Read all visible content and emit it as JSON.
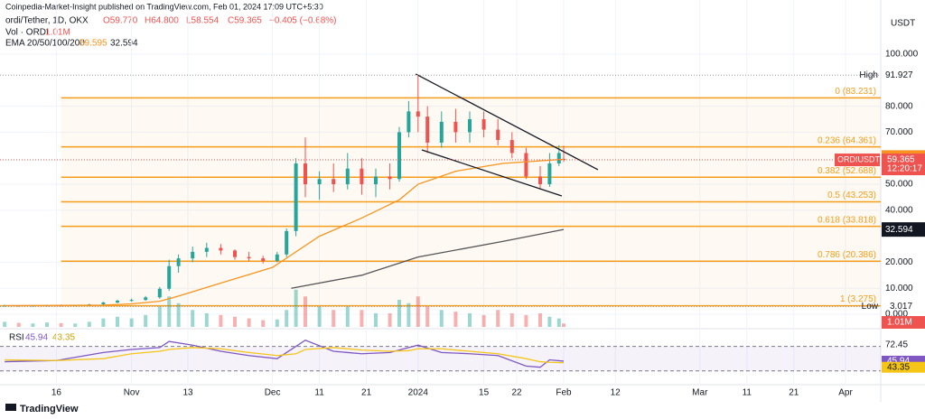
{
  "header": {
    "title": "Coinpedia-Market-Insight published on TradingView.com, Feb 01, 2024 17:09 UTC+5:30",
    "symbol": "ordi/Tether, 1D, OKX",
    "open": "O59.770",
    "high": "H64.800",
    "low": "L58.554",
    "close": "C59.365",
    "change": "−0.405 (−0.68%)",
    "vol": "Vol · ORDI",
    "vol_value": "1.01M",
    "ema": "EMA 20/50/100/200",
    "currency": "USDT",
    "footer": "TradingView"
  },
  "chart_data": {
    "type": "candlestick",
    "x": [
      4,
      7,
      10,
      13,
      16,
      19,
      22,
      25,
      28,
      31,
      34,
      37,
      39,
      41,
      44,
      47,
      50,
      53,
      56,
      59,
      62,
      64,
      66,
      68,
      71,
      74,
      77,
      80,
      83,
      86,
      88,
      90,
      92,
      94,
      97,
      100,
      103,
      106,
      109,
      112,
      115,
      118,
      120,
      122,
      123
    ],
    "open": [
      3.3,
      3.3,
      3.2,
      3.3,
      3.4,
      3.3,
      3.5,
      3.8,
      4.5,
      5.2,
      5.5,
      6.5,
      9.8,
      18.5,
      21.5,
      24,
      25.5,
      24.5,
      22,
      21.5,
      20.5,
      23,
      32,
      58,
      50,
      52,
      50,
      56,
      50,
      53,
      52,
      70,
      78,
      76,
      66,
      74,
      70,
      75,
      71,
      67,
      62,
      53,
      50,
      58,
      59.77
    ],
    "high": [
      3.6,
      3.5,
      3.5,
      3.6,
      3.7,
      3.6,
      4,
      4.8,
      5.6,
      6,
      7,
      10.5,
      21,
      23,
      26,
      27.5,
      27,
      25,
      24,
      22.5,
      24,
      33,
      60,
      68,
      55,
      58,
      62,
      60,
      56,
      58,
      72,
      82,
      91.927,
      80,
      78,
      79,
      78,
      78,
      75,
      70,
      64,
      57,
      62,
      65,
      64.8
    ],
    "low": [
      3,
      3.1,
      3.017,
      3.1,
      3.2,
      3.1,
      3.3,
      3.6,
      4.2,
      4.8,
      5.2,
      6,
      9,
      16,
      20,
      22,
      23,
      21,
      20.5,
      19.5,
      20,
      22,
      30,
      45,
      44,
      47,
      48,
      46,
      45,
      48,
      51,
      68,
      70,
      62,
      64,
      66,
      66,
      68,
      65,
      60,
      52,
      48,
      49,
      57,
      58.554
    ],
    "close": [
      3.3,
      3.2,
      3.3,
      3.4,
      3.3,
      3.5,
      3.8,
      4.5,
      5.2,
      5.5,
      6.5,
      9.8,
      18.5,
      21.5,
      24,
      25.5,
      24.5,
      22,
      21.5,
      20.5,
      23,
      32,
      58,
      50,
      52,
      50,
      56,
      50,
      53,
      52,
      70,
      78,
      76,
      66,
      74,
      70,
      75,
      71,
      67,
      62,
      53,
      50,
      58,
      62,
      59.365
    ],
    "up_color": "#26a69a",
    "down_color": "#ef5350",
    "xlim": [
      3,
      190.5
    ],
    "xticks": [
      {
        "value": 15,
        "label": "16"
      },
      {
        "value": 31,
        "label": "Nov"
      },
      {
        "value": 43,
        "label": "13"
      },
      {
        "value": 61,
        "label": "Dec"
      },
      {
        "value": 71,
        "label": "11"
      },
      {
        "value": 81,
        "label": "21"
      },
      {
        "value": 92,
        "label": "2024"
      },
      {
        "value": 106,
        "label": "15"
      },
      {
        "value": 113,
        "label": "22"
      },
      {
        "value": 123,
        "label": "Feb"
      },
      {
        "value": 134,
        "label": "12"
      },
      {
        "value": 152,
        "label": "Mar"
      },
      {
        "value": 162,
        "label": "11"
      },
      {
        "value": 172,
        "label": "21"
      },
      {
        "value": 183,
        "label": "Apr"
      }
    ],
    "ylim": [
      -4.86,
      113.9
    ],
    "yticks": [
      {
        "value": 100,
        "label": "100.000"
      },
      {
        "value": 80,
        "label": "80.000"
      },
      {
        "value": 70,
        "label": "70.000"
      },
      {
        "value": 50,
        "label": "50.000"
      },
      {
        "value": 40,
        "label": "40.000"
      },
      {
        "value": 20,
        "label": "20.000"
      },
      {
        "value": 10,
        "label": "10.000"
      },
      {
        "value": 0,
        "label": "0.000"
      }
    ],
    "fib": {
      "color": "#f59d1a",
      "levels": [
        {
          "value": 83.231,
          "label": "0 (83.231)"
        },
        {
          "value": 64.361,
          "label": "0.236 (64.361)"
        },
        {
          "value": 52.688,
          "label": "0.382 (52.688)"
        },
        {
          "value": 43.253,
          "label": "0.5 (43.253)"
        },
        {
          "value": 33.818,
          "label": "0.618 (33.818)"
        },
        {
          "value": 20.386,
          "label": "0.786 (20.386)"
        },
        {
          "value": 3.275,
          "label": "1 (3.275)"
        }
      ]
    },
    "emas": [
      {
        "color": "#f7931e",
        "x": [
          4,
          25,
          31,
          37,
          41,
          50,
          61,
          66,
          71,
          80,
          88,
          92,
          100,
          110,
          118,
          123
        ],
        "values": [
          3.3,
          3.5,
          4,
          5,
          7,
          12,
          18,
          24,
          30,
          37,
          44,
          50,
          55,
          58,
          59,
          59.595
        ]
      },
      {
        "color": "#555555",
        "x": [
          65,
          80,
          92,
          110,
          123
        ],
        "values": [
          10,
          15,
          22,
          28,
          32.594
        ]
      }
    ],
    "trendlines": [
      {
        "x": [
          91.5,
          130.3
        ],
        "values": [
          92.4,
          55.6
        ]
      },
      {
        "x": [
          92.8,
          122.6
        ],
        "values": [
          63.2,
          45.5
        ]
      }
    ],
    "volume": {
      "ylim": [
        0,
        12
      ],
      "values": [
        1.5,
        1.2,
        1,
        1.3,
        1.1,
        1,
        1.5,
        2.5,
        3,
        2.5,
        3.5,
        6,
        9,
        7,
        5,
        4,
        3.5,
        3,
        2.5,
        2,
        2.2,
        5,
        11,
        9,
        6,
        5,
        6,
        5,
        4,
        4,
        8,
        7,
        9,
        6,
        5,
        4.5,
        4,
        3.5,
        5,
        4,
        3.5,
        4,
        3,
        2.5,
        1.01
      ]
    },
    "badges": {
      "high": "High",
      "low": "Low",
      "symbol": "ORDIUSDT",
      "timer": "12:20:17",
      "vol": "1.01M",
      "low_value": 3.017
    },
    "rsi": {
      "label": "RSI",
      "ylim": [
        10.6,
        95.8
      ],
      "bands": [
        70,
        30
      ],
      "yticks": [
        {
          "value": 72.45,
          "label": "72.45"
        }
      ],
      "series": [
        {
          "color": "#7e57c2",
          "x": [
            4,
            15,
            25,
            31,
            37,
            39,
            44,
            50,
            56,
            62,
            66,
            68,
            74,
            80,
            86,
            90,
            92,
            97,
            103,
            109,
            115,
            118,
            120,
            123
          ],
          "values": [
            45,
            47,
            60,
            65,
            68,
            78,
            72,
            62,
            55,
            50,
            70,
            80,
            62,
            58,
            60,
            68,
            72,
            60,
            58,
            55,
            38,
            36,
            48,
            45.94
          ]
        },
        {
          "color": "#f5c518",
          "x": [
            4,
            15,
            25,
            31,
            37,
            39,
            44,
            50,
            56,
            62,
            66,
            68,
            74,
            80,
            86,
            90,
            92,
            97,
            103,
            109,
            115,
            118,
            120,
            123
          ],
          "values": [
            48,
            47,
            50,
            58,
            62,
            65,
            68,
            66,
            60,
            55,
            58,
            65,
            68,
            64,
            62,
            63,
            66,
            66,
            62,
            58,
            50,
            45,
            44,
            43.35
          ]
        }
      ]
    }
  }
}
